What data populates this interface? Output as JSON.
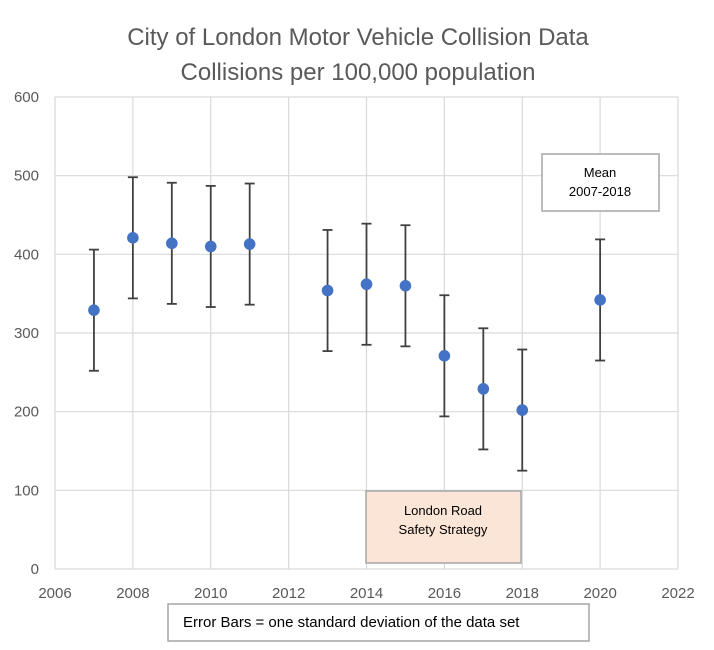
{
  "chart_data": {
    "type": "scatter",
    "title": "City of London Motor Vehicle Collision Data",
    "subtitle": "Collisions per 100,000 population",
    "xlabel": "",
    "ylabel": "",
    "xlim": [
      2006,
      2022
    ],
    "ylim": [
      0,
      600
    ],
    "x_ticks": [
      2006,
      2008,
      2010,
      2012,
      2014,
      2016,
      2018,
      2020,
      2022
    ],
    "y_ticks": [
      0,
      100,
      200,
      300,
      400,
      500,
      600
    ],
    "grid": true,
    "series": [
      {
        "color": "#4472c4",
        "points": [
          {
            "x": 2007,
            "y": 329,
            "err": 77
          },
          {
            "x": 2008,
            "y": 421,
            "err": 77
          },
          {
            "x": 2009,
            "y": 414,
            "err": 77
          },
          {
            "x": 2010,
            "y": 410,
            "err": 77
          },
          {
            "x": 2011,
            "y": 413,
            "err": 77
          },
          {
            "x": 2013,
            "y": 354,
            "err": 77
          },
          {
            "x": 2014,
            "y": 362,
            "err": 77
          },
          {
            "x": 2015,
            "y": 360,
            "err": 77
          },
          {
            "x": 2016,
            "y": 271,
            "err": 77
          },
          {
            "x": 2017,
            "y": 229,
            "err": 77
          },
          {
            "x": 2018,
            "y": 202,
            "err": 77
          },
          {
            "x": 2020,
            "y": 342,
            "err": 77
          }
        ]
      }
    ],
    "annotations": {
      "mean_label_line1": "Mean",
      "mean_label_line2": "2007-2018",
      "strategy_label_line1": "London Road",
      "strategy_label_line2": "Safety Strategy",
      "strategy_fill": "#fbe5d6",
      "error_bar_note": "Error Bars = one standard deviation of the data set"
    }
  }
}
